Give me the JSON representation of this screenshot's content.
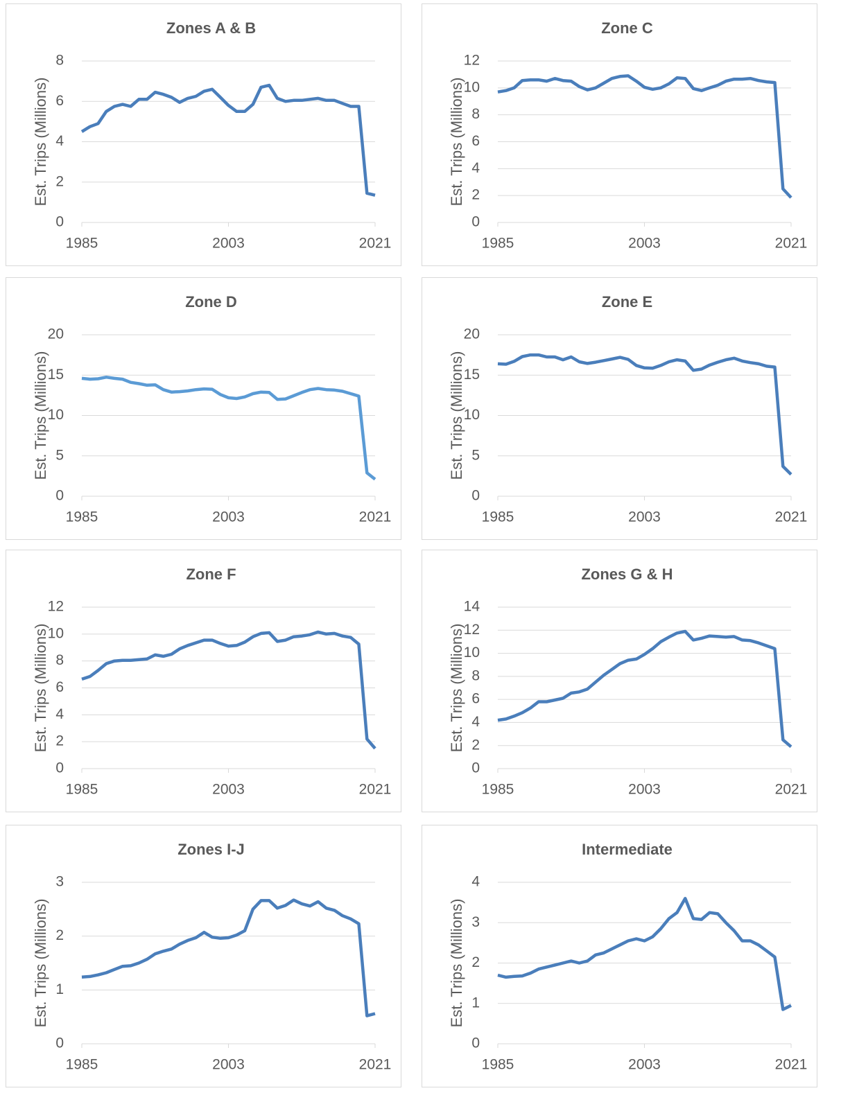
{
  "chart_data": [
    {
      "type": "line",
      "title": "Zones A & B",
      "y_label": "Est. Trips (Millions)",
      "color": "#4a7ebb",
      "grid": true,
      "x": [
        1985,
        1986,
        1987,
        1988,
        1989,
        1990,
        1991,
        1992,
        1993,
        1994,
        1995,
        1996,
        1997,
        1998,
        1999,
        2000,
        2001,
        2002,
        2003,
        2004,
        2005,
        2006,
        2007,
        2008,
        2009,
        2010,
        2011,
        2012,
        2013,
        2014,
        2015,
        2016,
        2017,
        2018,
        2019,
        2020,
        2021
      ],
      "values": [
        4.5,
        4.75,
        4.9,
        5.5,
        5.75,
        5.85,
        5.75,
        6.1,
        6.1,
        6.45,
        6.35,
        6.2,
        5.95,
        6.15,
        6.25,
        6.5,
        6.6,
        6.2,
        5.8,
        5.5,
        5.5,
        5.85,
        6.7,
        6.8,
        6.15,
        6.0,
        6.05,
        6.05,
        6.1,
        6.15,
        6.05,
        6.05,
        5.9,
        5.75,
        5.75,
        1.45,
        1.35
      ],
      "xlim": [
        1985,
        2021
      ],
      "xticks": [
        1985,
        2003,
        2021
      ],
      "ylim": [
        0,
        8
      ],
      "yticks": [
        0,
        2,
        4,
        6,
        8
      ]
    },
    {
      "type": "line",
      "title": "Zone C",
      "y_label": "Est. Trips (Millions)",
      "color": "#4a7ebb",
      "grid": true,
      "x": [
        1985,
        1986,
        1987,
        1988,
        1989,
        1990,
        1991,
        1992,
        1993,
        1994,
        1995,
        1996,
        1997,
        1998,
        1999,
        2000,
        2001,
        2002,
        2003,
        2004,
        2005,
        2006,
        2007,
        2008,
        2009,
        2010,
        2011,
        2012,
        2013,
        2014,
        2015,
        2016,
        2017,
        2018,
        2019,
        2020,
        2021
      ],
      "values": [
        9.7,
        9.8,
        10.0,
        10.55,
        10.6,
        10.6,
        10.5,
        10.7,
        10.55,
        10.5,
        10.1,
        9.85,
        10.0,
        10.35,
        10.7,
        10.85,
        10.9,
        10.5,
        10.05,
        9.9,
        10.0,
        10.3,
        10.75,
        10.7,
        9.95,
        9.8,
        10.0,
        10.2,
        10.5,
        10.65,
        10.65,
        10.7,
        10.55,
        10.45,
        10.4,
        2.5,
        1.85
      ],
      "xlim": [
        1985,
        2021
      ],
      "xticks": [
        1985,
        2003,
        2021
      ],
      "ylim": [
        0,
        12
      ],
      "yticks": [
        0,
        2,
        4,
        6,
        8,
        10,
        12
      ]
    },
    {
      "type": "line",
      "title": "Zone D",
      "y_label": "Est. Trips (Millions)",
      "color": "#5b9bd5",
      "grid": true,
      "x": [
        1985,
        1986,
        1987,
        1988,
        1989,
        1990,
        1991,
        1992,
        1993,
        1994,
        1995,
        1996,
        1997,
        1998,
        1999,
        2000,
        2001,
        2002,
        2003,
        2004,
        2005,
        2006,
        2007,
        2008,
        2009,
        2010,
        2011,
        2012,
        2013,
        2014,
        2015,
        2016,
        2017,
        2018,
        2019,
        2020,
        2021
      ],
      "values": [
        14.6,
        14.5,
        14.55,
        14.75,
        14.6,
        14.5,
        14.1,
        13.95,
        13.75,
        13.8,
        13.2,
        12.9,
        12.95,
        13.05,
        13.2,
        13.3,
        13.25,
        12.6,
        12.2,
        12.1,
        12.3,
        12.7,
        12.9,
        12.85,
        12.0,
        12.05,
        12.45,
        12.85,
        13.2,
        13.35,
        13.2,
        13.15,
        13.0,
        12.7,
        12.4,
        2.9,
        2.1
      ],
      "xlim": [
        1985,
        2021
      ],
      "xticks": [
        1985,
        2003,
        2021
      ],
      "ylim": [
        0,
        20
      ],
      "yticks": [
        0,
        5,
        10,
        15,
        20
      ]
    },
    {
      "type": "line",
      "title": "Zone E",
      "y_label": "Est. Trips (Millions)",
      "color": "#4a7ebb",
      "grid": true,
      "x": [
        1985,
        1986,
        1987,
        1988,
        1989,
        1990,
        1991,
        1992,
        1993,
        1994,
        1995,
        1996,
        1997,
        1998,
        1999,
        2000,
        2001,
        2002,
        2003,
        2004,
        2005,
        2006,
        2007,
        2008,
        2009,
        2010,
        2011,
        2012,
        2013,
        2014,
        2015,
        2016,
        2017,
        2018,
        2019,
        2020,
        2021
      ],
      "values": [
        16.4,
        16.35,
        16.7,
        17.3,
        17.5,
        17.5,
        17.25,
        17.25,
        16.9,
        17.25,
        16.65,
        16.45,
        16.6,
        16.8,
        17.0,
        17.2,
        16.95,
        16.2,
        15.9,
        15.85,
        16.2,
        16.65,
        16.9,
        16.75,
        15.6,
        15.75,
        16.25,
        16.6,
        16.9,
        17.1,
        16.75,
        16.55,
        16.4,
        16.1,
        16.0,
        3.7,
        2.7
      ],
      "xlim": [
        1985,
        2021
      ],
      "xticks": [
        1985,
        2003,
        2021
      ],
      "ylim": [
        0,
        20
      ],
      "yticks": [
        0,
        5,
        10,
        15,
        20
      ]
    },
    {
      "type": "line",
      "title": "Zone F",
      "y_label": "Est. Trips (Millions)",
      "color": "#4a7ebb",
      "grid": true,
      "x": [
        1985,
        1986,
        1987,
        1988,
        1989,
        1990,
        1991,
        1992,
        1993,
        1994,
        1995,
        1996,
        1997,
        1998,
        1999,
        2000,
        2001,
        2002,
        2003,
        2004,
        2005,
        2006,
        2007,
        2008,
        2009,
        2010,
        2011,
        2012,
        2013,
        2014,
        2015,
        2016,
        2017,
        2018,
        2019,
        2020,
        2021
      ],
      "values": [
        6.65,
        6.85,
        7.3,
        7.8,
        8.0,
        8.05,
        8.05,
        8.1,
        8.15,
        8.45,
        8.35,
        8.5,
        8.9,
        9.15,
        9.35,
        9.55,
        9.55,
        9.3,
        9.1,
        9.15,
        9.4,
        9.8,
        10.05,
        10.1,
        9.45,
        9.55,
        9.8,
        9.85,
        9.95,
        10.15,
        10.0,
        10.05,
        9.85,
        9.75,
        9.25,
        2.2,
        1.5
      ],
      "xlim": [
        1985,
        2021
      ],
      "xticks": [
        1985,
        2003,
        2021
      ],
      "ylim": [
        0,
        12
      ],
      "yticks": [
        0,
        2,
        4,
        6,
        8,
        10,
        12
      ]
    },
    {
      "type": "line",
      "title": "Zones G & H",
      "y_label": "Est. Trips (Millions)",
      "color": "#4a7ebb",
      "grid": true,
      "x": [
        1985,
        1986,
        1987,
        1988,
        1989,
        1990,
        1991,
        1992,
        1993,
        1994,
        1995,
        1996,
        1997,
        1998,
        1999,
        2000,
        2001,
        2002,
        2003,
        2004,
        2005,
        2006,
        2007,
        2008,
        2009,
        2010,
        2011,
        2012,
        2013,
        2014,
        2015,
        2016,
        2017,
        2018,
        2019,
        2020,
        2021
      ],
      "values": [
        4.2,
        4.3,
        4.55,
        4.85,
        5.25,
        5.8,
        5.8,
        5.95,
        6.1,
        6.55,
        6.65,
        6.9,
        7.5,
        8.1,
        8.6,
        9.1,
        9.4,
        9.5,
        9.9,
        10.4,
        11.0,
        11.4,
        11.75,
        11.9,
        11.15,
        11.3,
        11.5,
        11.45,
        11.4,
        11.45,
        11.15,
        11.1,
        10.9,
        10.65,
        10.4,
        2.5,
        1.9
      ],
      "xlim": [
        1985,
        2021
      ],
      "xticks": [
        1985,
        2003,
        2021
      ],
      "ylim": [
        0,
        14
      ],
      "yticks": [
        0,
        2,
        4,
        6,
        8,
        10,
        12,
        14
      ]
    },
    {
      "type": "line",
      "title": "Zones I-J",
      "y_label": "Est. Trips (Millions)",
      "color": "#4a7ebb",
      "grid": true,
      "x": [
        1985,
        1986,
        1987,
        1988,
        1989,
        1990,
        1991,
        1992,
        1993,
        1994,
        1995,
        1996,
        1997,
        1998,
        1999,
        2000,
        2001,
        2002,
        2003,
        2004,
        2005,
        2006,
        2007,
        2008,
        2009,
        2010,
        2011,
        2012,
        2013,
        2014,
        2015,
        2016,
        2017,
        2018,
        2019,
        2020,
        2021
      ],
      "values": [
        1.24,
        1.25,
        1.28,
        1.32,
        1.38,
        1.44,
        1.45,
        1.5,
        1.57,
        1.67,
        1.72,
        1.76,
        1.85,
        1.92,
        1.97,
        2.07,
        1.98,
        1.96,
        1.97,
        2.02,
        2.1,
        2.5,
        2.66,
        2.66,
        2.52,
        2.57,
        2.67,
        2.6,
        2.56,
        2.64,
        2.52,
        2.48,
        2.38,
        2.32,
        2.23,
        0.52,
        0.56
      ],
      "xlim": [
        1985,
        2021
      ],
      "xticks": [
        1985,
        2003,
        2021
      ],
      "ylim": [
        0,
        3
      ],
      "yticks": [
        0,
        1,
        2,
        3
      ]
    },
    {
      "type": "line",
      "title": "Intermediate",
      "y_label": "Est. Trips (Millions)",
      "color": "#4a7ebb",
      "grid": true,
      "x": [
        1985,
        1986,
        1987,
        1988,
        1989,
        1990,
        1991,
        1992,
        1993,
        1994,
        1995,
        1996,
        1997,
        1998,
        1999,
        2000,
        2001,
        2002,
        2003,
        2004,
        2005,
        2006,
        2007,
        2008,
        2009,
        2010,
        2011,
        2012,
        2013,
        2014,
        2015,
        2016,
        2017,
        2018,
        2019,
        2020,
        2021
      ],
      "values": [
        1.7,
        1.65,
        1.67,
        1.68,
        1.75,
        1.85,
        1.9,
        1.95,
        2.0,
        2.05,
        2.0,
        2.05,
        2.2,
        2.25,
        2.35,
        2.45,
        2.55,
        2.6,
        2.55,
        2.65,
        2.85,
        3.1,
        3.25,
        3.6,
        3.1,
        3.08,
        3.25,
        3.22,
        3.0,
        2.8,
        2.55,
        2.55,
        2.45,
        2.3,
        2.15,
        0.85,
        0.95
      ],
      "xlim": [
        1985,
        2021
      ],
      "xticks": [
        1985,
        2003,
        2021
      ],
      "ylim": [
        0,
        4
      ],
      "yticks": [
        0,
        1,
        2,
        3,
        4
      ]
    }
  ]
}
